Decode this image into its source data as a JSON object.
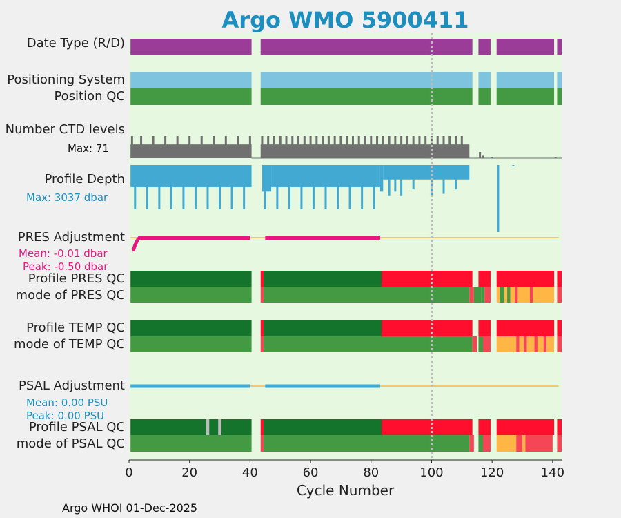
{
  "title": "Argo WMO 5900411",
  "footer": "Argo WHOI 01-Dec-2025",
  "colors": {
    "panel_bg": "#e6f8e0",
    "date_type": "#9b3d98",
    "positioning": "#7ec4df",
    "qc_good": "#449a43",
    "qc_dark_good": "#15742b",
    "qc_bad": "#ff0e2d",
    "qc_bad_light": "#f44654",
    "qc_probable": "#ffb645",
    "ctd": "#707070",
    "depth": "#42aad2",
    "pres_adj": "#e8177f",
    "psal_adj": "#42aad2",
    "zero_line": "#f5b845",
    "marker": "#bcbcbc"
  },
  "labels": {
    "date_type": "Date Type (R/D)",
    "positioning": "Positioning System",
    "position_qc": "Position QC",
    "ctd_levels": "Number CTD levels",
    "ctd_max": "Max: 71",
    "profile_depth": "Profile Depth",
    "depth_max": "Max: 3037 dbar",
    "pres_adj": "PRES Adjustment",
    "pres_mean": "Mean: -0.01 dbar",
    "pres_peak": "Peak: -0.50 dbar",
    "profile_pres_qc": "Profile PRES QC",
    "mode_pres_qc": "mode of PRES QC",
    "profile_temp_qc": "Profile TEMP QC",
    "mode_temp_qc": "mode of TEMP QC",
    "psal_adj": "PSAL Adjustment",
    "psal_mean": "Mean: 0.00 PSU",
    "psal_peak": "Peak: 0.00 PSU",
    "profile_psal_qc": "Profile PSAL QC",
    "mode_psal_qc": "mode of PSAL QC"
  },
  "chart_data": {
    "type": "bar",
    "title": "Argo WMO 5900411",
    "xlabel": "Cycle Number",
    "xlim": [
      0,
      143
    ],
    "xticks": [
      0,
      20,
      40,
      60,
      80,
      100,
      120,
      140
    ],
    "marker_cycle": 100,
    "max_ctd_levels": 71,
    "max_depth_dbar": 3037,
    "rows": {
      "date_type": [
        [
          0.5,
          40.5,
          "date_type"
        ],
        [
          43.5,
          113.5,
          "date_type"
        ],
        [
          115.5,
          119.5,
          "date_type"
        ],
        [
          121.5,
          140.5,
          "date_type"
        ],
        [
          141.5,
          143,
          "date_type"
        ]
      ],
      "positioning": [
        [
          0.5,
          40.5,
          "positioning"
        ],
        [
          43.5,
          113.5,
          "positioning"
        ],
        [
          115.5,
          119.5,
          "positioning"
        ],
        [
          121.5,
          140.5,
          "positioning"
        ],
        [
          141.5,
          143,
          "positioning"
        ]
      ],
      "position_qc": [
        [
          0.5,
          40.5,
          "qc_good"
        ],
        [
          43.5,
          113.5,
          "qc_good"
        ],
        [
          115.5,
          119.5,
          "qc_good"
        ],
        [
          121.5,
          140.5,
          "qc_good"
        ],
        [
          141.5,
          143,
          "qc_good"
        ]
      ],
      "profile_pres_qc": [
        [
          0.5,
          40.5,
          "qc_dark_good"
        ],
        [
          43.5,
          44.5,
          "qc_bad"
        ],
        [
          44.5,
          83.5,
          "qc_dark_good"
        ],
        [
          83.5,
          113.5,
          "qc_bad"
        ],
        [
          115.5,
          119.5,
          "qc_bad"
        ],
        [
          121.5,
          140.5,
          "qc_bad"
        ],
        [
          141.5,
          143,
          "qc_bad"
        ]
      ],
      "mode_pres_qc": [
        [
          0.5,
          40.5,
          "qc_good"
        ],
        [
          43.5,
          44.5,
          "qc_bad_light"
        ],
        [
          44.5,
          112.5,
          "qc_good"
        ],
        [
          112.5,
          114,
          "qc_bad_light"
        ],
        [
          114,
          116.5,
          "qc_good"
        ],
        [
          116.5,
          117.5,
          "qc_good"
        ],
        [
          117.5,
          119.5,
          "qc_bad_light"
        ],
        [
          121.5,
          122.5,
          "qc_probable"
        ],
        [
          122.5,
          124,
          "qc_good"
        ],
        [
          124,
          125,
          "qc_probable"
        ],
        [
          125,
          126,
          "qc_good"
        ],
        [
          126,
          127.5,
          "qc_probable"
        ],
        [
          127.5,
          128.5,
          "qc_bad_light"
        ],
        [
          128.5,
          132.5,
          "qc_probable"
        ],
        [
          132.5,
          133.5,
          "qc_bad_light"
        ],
        [
          133.5,
          140.5,
          "qc_probable"
        ],
        [
          141.5,
          143,
          "qc_bad_light"
        ]
      ],
      "profile_temp_qc": [
        [
          0.5,
          40.5,
          "qc_dark_good"
        ],
        [
          43.5,
          44.5,
          "qc_bad"
        ],
        [
          44.5,
          83.5,
          "qc_dark_good"
        ],
        [
          83.5,
          113.5,
          "qc_bad"
        ],
        [
          115.5,
          119.5,
          "qc_bad"
        ],
        [
          121.5,
          140.5,
          "qc_bad"
        ],
        [
          141.5,
          143,
          "qc_bad"
        ]
      ],
      "mode_temp_qc": [
        [
          0.5,
          40.5,
          "qc_good"
        ],
        [
          43.5,
          44.5,
          "qc_bad_light"
        ],
        [
          44.5,
          113.5,
          "qc_good"
        ],
        [
          113.5,
          115,
          "qc_bad_light"
        ],
        [
          115.5,
          117,
          "qc_good"
        ],
        [
          117,
          119.5,
          "qc_bad_light"
        ],
        [
          121.5,
          128,
          "qc_probable"
        ],
        [
          128,
          129,
          "qc_bad_light"
        ],
        [
          129,
          130.5,
          "qc_probable"
        ],
        [
          130.5,
          131.5,
          "qc_bad_light"
        ],
        [
          131.5,
          134,
          "qc_probable"
        ],
        [
          134,
          135,
          "qc_bad_light"
        ],
        [
          135,
          137,
          "qc_probable"
        ],
        [
          137,
          138,
          "qc_bad_light"
        ],
        [
          138,
          140.5,
          "qc_probable"
        ],
        [
          141.5,
          143,
          "qc_bad_light"
        ]
      ],
      "profile_psal_qc": [
        [
          0.5,
          25.5,
          "qc_dark_good"
        ],
        [
          25.5,
          26.5,
          "marker"
        ],
        [
          26.5,
          29.5,
          "qc_dark_good"
        ],
        [
          29.5,
          30.5,
          "marker"
        ],
        [
          30.5,
          40.5,
          "qc_dark_good"
        ],
        [
          43.5,
          44.5,
          "qc_bad"
        ],
        [
          44.5,
          83.5,
          "qc_dark_good"
        ],
        [
          83.5,
          113.5,
          "qc_bad"
        ],
        [
          115.5,
          119.5,
          "qc_bad"
        ],
        [
          121.5,
          140.5,
          "qc_bad"
        ],
        [
          141.5,
          143,
          "qc_bad"
        ]
      ],
      "mode_psal_qc": [
        [
          0.5,
          40.5,
          "qc_good"
        ],
        [
          43.5,
          44.5,
          "qc_bad_light"
        ],
        [
          44.5,
          112.5,
          "qc_good"
        ],
        [
          112.5,
          114,
          "qc_bad_light"
        ],
        [
          115.5,
          117,
          "qc_good"
        ],
        [
          117,
          119.5,
          "qc_bad_light"
        ],
        [
          121.5,
          128,
          "qc_probable"
        ],
        [
          128,
          130,
          "qc_bad_light"
        ],
        [
          130,
          131,
          "qc_probable"
        ],
        [
          131,
          140,
          "qc_bad_light"
        ],
        [
          141.5,
          143,
          "qc_bad_light"
        ]
      ]
    },
    "ctd_levels": {
      "segments": [
        [
          0.5,
          40.5
        ],
        [
          43.5,
          112.5
        ]
      ],
      "base_value": 44,
      "spike_value": 71,
      "spike_cycles": [
        1,
        4,
        8,
        12,
        16,
        20,
        24,
        28,
        32,
        36,
        40,
        44,
        46,
        48,
        50,
        52,
        54,
        56,
        58,
        60,
        62,
        64,
        66,
        68,
        70,
        72,
        74,
        76,
        78,
        80,
        82,
        84,
        86,
        88,
        90,
        92,
        94,
        96,
        98,
        100,
        102,
        104,
        106,
        108,
        110
      ],
      "late_cycles": [
        [
          116,
          20
        ],
        [
          117,
          8
        ],
        [
          120,
          4
        ],
        [
          141,
          3
        ]
      ]
    },
    "profile_depth": {
      "bars": [
        [
          0.5,
          40.5,
          1000
        ],
        [
          44,
          47,
          1200
        ],
        [
          47,
          83,
          1000
        ],
        [
          83,
          84,
          1200
        ],
        [
          84,
          112.5,
          650
        ]
      ],
      "deep_cycles": [
        [
          2,
          2000
        ],
        [
          6,
          2000
        ],
        [
          10,
          2000
        ],
        [
          14,
          2000
        ],
        [
          18,
          2000
        ],
        [
          22,
          2000
        ],
        [
          26,
          2000
        ],
        [
          30,
          2000
        ],
        [
          34,
          2000
        ],
        [
          38,
          2000
        ],
        [
          45,
          2000
        ],
        [
          49,
          2000
        ],
        [
          53,
          2000
        ],
        [
          57,
          2000
        ],
        [
          61,
          2000
        ],
        [
          65,
          2000
        ],
        [
          69,
          2000
        ],
        [
          73,
          2000
        ],
        [
          77,
          2000
        ],
        [
          81,
          2000
        ],
        [
          86,
          1400
        ],
        [
          88,
          1200
        ],
        [
          90,
          1400
        ],
        [
          94,
          1100
        ],
        [
          100,
          1400
        ],
        [
          104,
          1300
        ],
        [
          108,
          1100
        ],
        [
          122,
          3037
        ]
      ],
      "small_cycles": [
        [
          127,
          50
        ]
      ]
    },
    "pres_adjustment": {
      "ramp": [
        [
          1,
          -0.5
        ],
        [
          1.5,
          -0.48
        ],
        [
          2,
          -0.3
        ],
        [
          3,
          -0.05
        ],
        [
          4,
          -0.01
        ]
      ],
      "segments": [
        [
          3,
          40
        ],
        [
          45,
          83
        ]
      ]
    },
    "psal_adjustment": {
      "segments": [
        [
          0.5,
          40
        ],
        [
          45,
          83
        ]
      ]
    }
  }
}
